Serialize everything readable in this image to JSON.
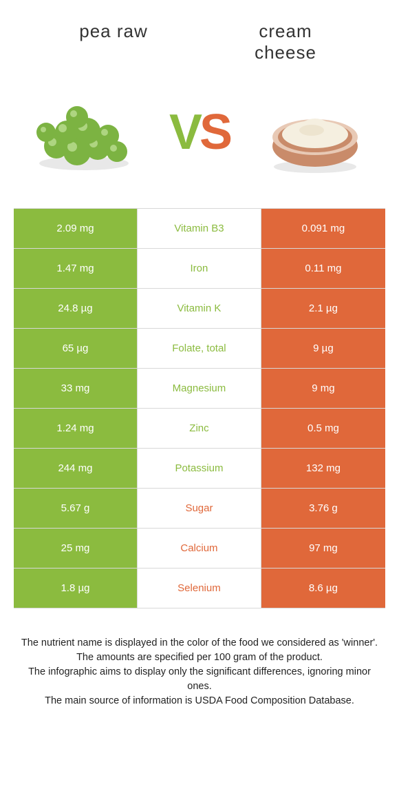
{
  "colors": {
    "green": "#8bbb3f",
    "orange": "#e0683a",
    "white": "#ffffff",
    "text_dark": "#333333"
  },
  "header": {
    "left_title": "pea raw",
    "right_title": "cream\ncheese",
    "vs_v": "V",
    "vs_s": "S"
  },
  "table": {
    "rows": [
      {
        "left": "2.09 mg",
        "mid": "Vitamin B3",
        "right": "0.091 mg",
        "winner": "left"
      },
      {
        "left": "1.47 mg",
        "mid": "Iron",
        "right": "0.11 mg",
        "winner": "left"
      },
      {
        "left": "24.8 µg",
        "mid": "Vitamin K",
        "right": "2.1 µg",
        "winner": "left"
      },
      {
        "left": "65 µg",
        "mid": "Folate, total",
        "right": "9 µg",
        "winner": "left"
      },
      {
        "left": "33 mg",
        "mid": "Magnesium",
        "right": "9 mg",
        "winner": "left"
      },
      {
        "left": "1.24 mg",
        "mid": "Zinc",
        "right": "0.5 mg",
        "winner": "left"
      },
      {
        "left": "244 mg",
        "mid": "Potassium",
        "right": "132 mg",
        "winner": "left"
      },
      {
        "left": "5.67 g",
        "mid": "Sugar",
        "right": "3.76 g",
        "winner": "right"
      },
      {
        "left": "25 mg",
        "mid": "Calcium",
        "right": "97 mg",
        "winner": "right"
      },
      {
        "left": "1.8 µg",
        "mid": "Selenium",
        "right": "8.6 µg",
        "winner": "right"
      }
    ]
  },
  "footer": {
    "line1": "The nutrient name is displayed in the color of the food we considered as 'winner'.",
    "line2": "The amounts are specified per 100 gram of the product.",
    "line3": "The infographic aims to display only the significant differences, ignoring minor ones.",
    "line4": "The main source of information is USDA Food Composition Database."
  }
}
